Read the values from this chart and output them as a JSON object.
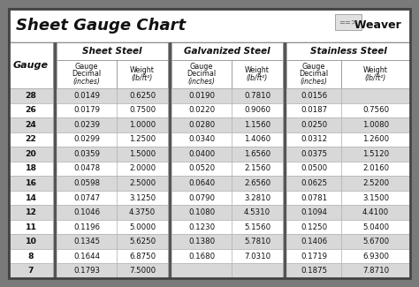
{
  "title": "Sheet Gauge Chart",
  "outer_bg": "#7a7a7a",
  "inner_bg": "#ffffff",
  "row_bg_even": "#ffffff",
  "row_bg_odd": "#d8d8d8",
  "sep_color": "#555555",
  "gauges": [
    28,
    26,
    24,
    22,
    20,
    18,
    16,
    14,
    12,
    11,
    10,
    8,
    7
  ],
  "sheet_steel_decimal": [
    "0.0149",
    "0.0179",
    "0.0239",
    "0.0299",
    "0.0359",
    "0.0478",
    "0.0598",
    "0.0747",
    "0.1046",
    "0.1196",
    "0.1345",
    "0.1644",
    "0.1793"
  ],
  "sheet_steel_weight": [
    "0.6250",
    "0.7500",
    "1.0000",
    "1.2500",
    "1.5000",
    "2.0000",
    "2.5000",
    "3.1250",
    "4.3750",
    "5.0000",
    "5.6250",
    "6.8750",
    "7.5000"
  ],
  "galv_decimal": [
    "0.0190",
    "0.0220",
    "0.0280",
    "0.0340",
    "0.0400",
    "0.0520",
    "0.0640",
    "0.0790",
    "0.1080",
    "0.1230",
    "0.1380",
    "0.1680",
    ""
  ],
  "galv_weight": [
    "0.7810",
    "0.9060",
    "1.1560",
    "1.4060",
    "1.6560",
    "2.1560",
    "2.6560",
    "3.2810",
    "4.5310",
    "5.1560",
    "5.7810",
    "7.0310",
    ""
  ],
  "ss_decimal": [
    "0.0156",
    "0.0187",
    "0.0250",
    "0.0312",
    "0.0375",
    "0.0500",
    "0.0625",
    "0.0781",
    "0.1094",
    "0.1250",
    "0.1406",
    "0.1719",
    "0.1875"
  ],
  "ss_weight": [
    "",
    "0.7560",
    "1.0080",
    "1.2600",
    "1.5120",
    "2.0160",
    "2.5200",
    "3.1500",
    "4.4100",
    "5.0400",
    "5.6700",
    "6.9300",
    "7.8710"
  ],
  "text_color": "#111111",
  "border_color": "#444444",
  "weaver_text": "Weaver"
}
